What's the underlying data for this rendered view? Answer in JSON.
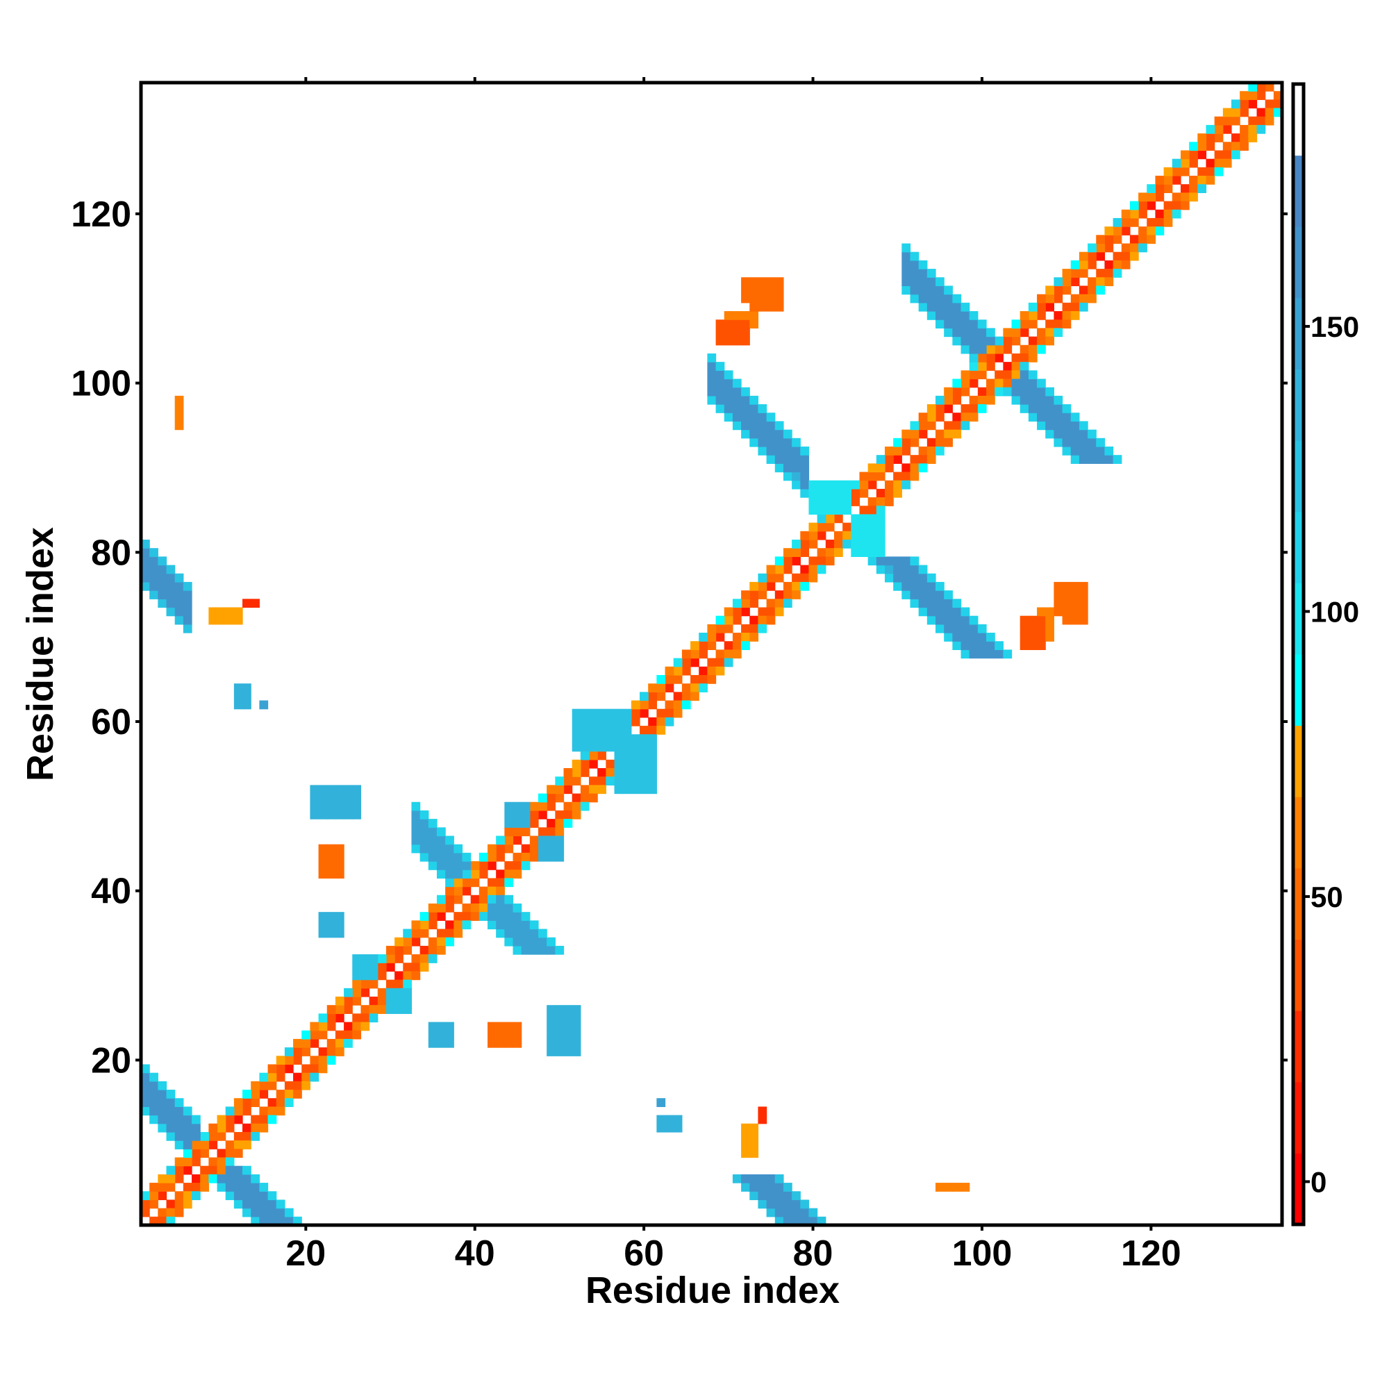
{
  "chart_data": {
    "type": "heatmap",
    "title": "",
    "xlabel": "Residue index",
    "ylabel": "Residue index",
    "xlim": [
      0.5,
      135.5
    ],
    "ylim": [
      0.5,
      135.5
    ],
    "xticks": [
      20,
      40,
      60,
      80,
      100,
      120
    ],
    "yticks": [
      20,
      40,
      60,
      80,
      100,
      120
    ],
    "symmetric": true,
    "grid": false,
    "colorbar": {
      "range": [
        -7.5,
        192.5
      ],
      "ticks": [
        0,
        50,
        100,
        150
      ],
      "bands": [
        {
          "from": -7.5,
          "to": 5,
          "color": "#ff0000"
        },
        {
          "from": 5,
          "to": 17.5,
          "color": "#ff1600"
        },
        {
          "from": 17.5,
          "to": 30,
          "color": "#ff2c00"
        },
        {
          "from": 30,
          "to": 42.5,
          "color": "#ff5200"
        },
        {
          "from": 42.5,
          "to": 55,
          "color": "#ff6a00"
        },
        {
          "from": 55,
          "to": 67.5,
          "color": "#ff8000"
        },
        {
          "from": 67.5,
          "to": 80,
          "color": "#ffa200"
        },
        {
          "from": 80,
          "to": 92.5,
          "color": "#00ffff"
        },
        {
          "from": 92.5,
          "to": 105,
          "color": "#1ee4f0"
        },
        {
          "from": 105,
          "to": 117.5,
          "color": "#22d2ea"
        },
        {
          "from": 117.5,
          "to": 130,
          "color": "#2ac2e2"
        },
        {
          "from": 130,
          "to": 142.5,
          "color": "#32b2da"
        },
        {
          "from": 142.5,
          "to": 155,
          "color": "#3aa2d2"
        },
        {
          "from": 155,
          "to": 167.5,
          "color": "#4292ca"
        },
        {
          "from": 167.5,
          "to": 180,
          "color": "#4a86c4"
        },
        {
          "from": 180,
          "to": 192.5,
          "color": "#ffffff"
        }
      ]
    },
    "diagonal_bands": [
      {
        "offset": 1,
        "pattern": [
          10,
          30,
          45,
          20,
          50,
          35
        ]
      },
      {
        "offset": 2,
        "pattern": [
          55,
          40,
          60,
          45,
          70,
          30
        ]
      },
      {
        "offset": 3,
        "pattern": [
          65,
          95,
          50,
          75,
          110,
          60,
          85
        ]
      }
    ],
    "antiparallel_strands": [
      {
        "x": [
          1,
          7
        ],
        "sum": [
          15,
          20
        ],
        "value": 160,
        "edge_value": 115
      },
      {
        "x": [
          33,
          40
        ],
        "sum": [
          78,
          83
        ],
        "value": 150,
        "edge_value": 110
      },
      {
        "x": [
          91,
          101
        ],
        "sum": [
          202,
          207
        ],
        "value": 165,
        "edge_value": 115
      },
      {
        "x": [
          1,
          6
        ],
        "sum": [
          77,
          82
        ],
        "value": 162,
        "edge_value": 120
      },
      {
        "x": [
          68,
          79
        ],
        "sum": [
          166,
          171
        ],
        "value": 163,
        "edge_value": 115
      }
    ],
    "patches": [
      {
        "x": [
          52,
          58
        ],
        "y": [
          57,
          61
        ],
        "value": 125
      },
      {
        "x": [
          26,
          28
        ],
        "y": [
          30,
          32
        ],
        "value": 120
      },
      {
        "x": [
          44,
          46
        ],
        "y": [
          48,
          50
        ],
        "value": 140
      },
      {
        "x": [
          80,
          84
        ],
        "y": [
          85,
          88
        ],
        "value": 100
      },
      {
        "x": [
          21,
          26
        ],
        "y": [
          49,
          52
        ],
        "value": 135
      },
      {
        "x": [
          22,
          24
        ],
        "y": [
          42,
          45
        ],
        "value": 50
      },
      {
        "x": [
          22,
          24
        ],
        "y": [
          35,
          37
        ],
        "value": 130
      },
      {
        "x": [
          12,
          13
        ],
        "y": [
          62,
          64
        ],
        "value": 140
      },
      {
        "x": [
          15,
          15
        ],
        "y": [
          62,
          62
        ],
        "value": 145
      },
      {
        "x": [
          5,
          5
        ],
        "y": [
          95,
          98
        ],
        "value": 60
      },
      {
        "x": [
          9,
          12
        ],
        "y": [
          72,
          73
        ],
        "value": 70
      },
      {
        "x": [
          13,
          14
        ],
        "y": [
          74,
          74
        ],
        "value": 20
      },
      {
        "x": [
          70,
          73
        ],
        "y": [
          107,
          108
        ],
        "value": 60
      },
      {
        "x": [
          72,
          74
        ],
        "y": [
          110,
          112
        ],
        "value": 45
      },
      {
        "x": [
          69,
          70
        ],
        "y": [
          105,
          105
        ],
        "value": 25
      },
      {
        "x": [
          78,
          78
        ],
        "y": [
          89,
          89
        ],
        "value": 140
      },
      {
        "x": [
          105,
          107
        ],
        "y": [
          69,
          72
        ],
        "value": 35
      },
      {
        "x": [
          109,
          112
        ],
        "y": [
          73,
          76
        ],
        "value": 45
      }
    ]
  }
}
